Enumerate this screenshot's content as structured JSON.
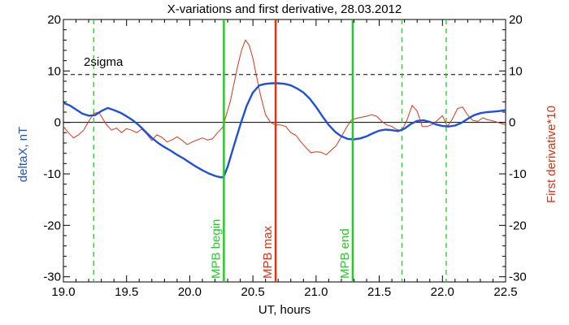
{
  "chart_data": {
    "type": "line",
    "title": "X-variations and first derivative, 28.03.2012",
    "xlabel": "UT, hours",
    "ylabel_left": "deltaX, nT",
    "ylabel_right": "First derivative*10",
    "xlim": [
      19.0,
      22.5
    ],
    "ylim": [
      -31,
      20
    ],
    "x_ticks": [
      "19.0",
      "19.5",
      "20.0",
      "20.5",
      "21.0",
      "21.5",
      "22.0",
      "22.5"
    ],
    "y_ticks_left": [
      "20",
      "10",
      "0",
      "-10",
      "-20",
      "-30"
    ],
    "y_ticks_right": [
      "20",
      "10",
      "0",
      "-10",
      "-20",
      "-30"
    ],
    "zero_line": 0,
    "threshold": {
      "label": "2sigma",
      "value": 9.3
    },
    "vertical_markers": [
      {
        "label": "MPB begin",
        "x": 20.27,
        "color": "#22cc22",
        "style": "solid"
      },
      {
        "label": "MPB max",
        "x": 20.68,
        "color": "#dd3311",
        "style": "solid"
      },
      {
        "label": "MPB end",
        "x": 21.29,
        "color": "#22cc22",
        "style": "solid"
      }
    ],
    "dashed_markers": [
      {
        "x": 19.24,
        "color": "#22cc22"
      },
      {
        "x": 21.68,
        "color": "#22cc22"
      },
      {
        "x": 22.03,
        "color": "#22cc22"
      }
    ],
    "series": [
      {
        "color": "#1e50dc",
        "x": [
          19.0,
          19.05,
          19.1,
          19.15,
          19.2,
          19.25,
          19.3,
          19.35,
          19.4,
          19.45,
          19.5,
          19.55,
          19.6,
          19.65,
          19.7,
          19.75,
          19.8,
          19.85,
          19.9,
          19.95,
          20.0,
          20.05,
          20.1,
          20.15,
          20.2,
          20.25,
          20.27,
          20.3,
          20.35,
          20.4,
          20.45,
          20.5,
          20.55,
          20.6,
          20.65,
          20.7,
          20.75,
          20.8,
          20.85,
          20.9,
          20.95,
          21.0,
          21.05,
          21.1,
          21.15,
          21.2,
          21.25,
          21.3,
          21.35,
          21.4,
          21.45,
          21.5,
          21.55,
          21.6,
          21.65,
          21.7,
          21.75,
          21.8,
          21.85,
          21.9,
          21.95,
          22.0,
          22.05,
          22.1,
          22.15,
          22.2,
          22.25,
          22.3,
          22.35,
          22.4,
          22.45,
          22.5
        ],
        "values": [
          3.8,
          3.3,
          2.5,
          1.7,
          1.3,
          1.4,
          2.2,
          2.8,
          2.4,
          1.9,
          1.2,
          0.4,
          -0.6,
          -1.8,
          -3.0,
          -4.0,
          -4.8,
          -5.5,
          -6.3,
          -7.0,
          -7.8,
          -8.6,
          -9.3,
          -9.9,
          -10.4,
          -10.7,
          -10.5,
          -8.6,
          -4.5,
          -0.5,
          3.2,
          5.8,
          7.2,
          7.5,
          7.6,
          7.6,
          7.5,
          7.2,
          6.6,
          5.8,
          4.6,
          3.0,
          1.2,
          -0.5,
          -1.8,
          -2.7,
          -3.2,
          -3.3,
          -3.1,
          -2.7,
          -2.1,
          -1.6,
          -1.4,
          -1.5,
          -1.7,
          -1.2,
          -0.3,
          0.3,
          0.4,
          0.1,
          -0.4,
          -0.7,
          -0.8,
          -0.6,
          -0.1,
          0.7,
          1.4,
          1.8,
          2.0,
          2.1,
          2.2,
          2.4
        ]
      },
      {
        "color": "#dd3311",
        "x": [
          19.0,
          19.04,
          19.08,
          19.12,
          19.16,
          19.2,
          19.24,
          19.28,
          19.3,
          19.34,
          19.38,
          19.42,
          19.46,
          19.5,
          19.54,
          19.58,
          19.62,
          19.66,
          19.7,
          19.74,
          19.78,
          19.82,
          19.86,
          19.9,
          19.94,
          19.98,
          20.02,
          20.06,
          20.1,
          20.14,
          20.18,
          20.22,
          20.26,
          20.29,
          20.32,
          20.35,
          20.38,
          20.41,
          20.44,
          20.47,
          20.5,
          20.53,
          20.56,
          20.6,
          20.64,
          20.68,
          20.72,
          20.76,
          20.8,
          20.84,
          20.88,
          20.92,
          20.96,
          21.0,
          21.04,
          21.08,
          21.12,
          21.16,
          21.2,
          21.24,
          21.28,
          21.32,
          21.36,
          21.4,
          21.44,
          21.48,
          21.52,
          21.56,
          21.6,
          21.64,
          21.68,
          21.72,
          21.76,
          21.8,
          21.84,
          21.88,
          21.92,
          21.96,
          22.0,
          22.04,
          22.08,
          22.12,
          22.16,
          22.2,
          22.24,
          22.28,
          22.32,
          22.36,
          22.4,
          22.44,
          22.48,
          22.5
        ],
        "values": [
          -0.8,
          -2.0,
          -3.0,
          -2.4,
          -1.5,
          0.2,
          1.7,
          2.0,
          1.2,
          -0.4,
          -1.5,
          -1.1,
          -2.0,
          -1.2,
          -1.5,
          -2.0,
          -1.3,
          -2.3,
          -3.5,
          -2.4,
          -2.9,
          -3.8,
          -3.4,
          -2.8,
          -3.5,
          -4.3,
          -3.8,
          -3.4,
          -3.0,
          -3.4,
          -3.2,
          -2.0,
          -1.0,
          1.5,
          4.0,
          7.5,
          11.0,
          14.0,
          16.0,
          15.0,
          12.5,
          8.8,
          5.3,
          1.5,
          0.0,
          -0.5,
          -0.5,
          -0.8,
          -2.0,
          -2.5,
          -3.8,
          -4.9,
          -5.9,
          -5.7,
          -5.8,
          -6.3,
          -5.4,
          -4.5,
          -2.8,
          -1.0,
          0.5,
          0.8,
          1.0,
          1.2,
          1.5,
          1.2,
          0.2,
          -0.5,
          -0.8,
          -1.4,
          -1.6,
          0.5,
          3.3,
          2.2,
          -0.8,
          -0.8,
          -0.4,
          0.4,
          1.3,
          -0.8,
          0.7,
          2.7,
          3.0,
          1.4,
          0.4,
          0.2,
          0.9,
          0.5,
          0.3,
          0.0,
          -0.3,
          -0.5
        ]
      }
    ]
  }
}
